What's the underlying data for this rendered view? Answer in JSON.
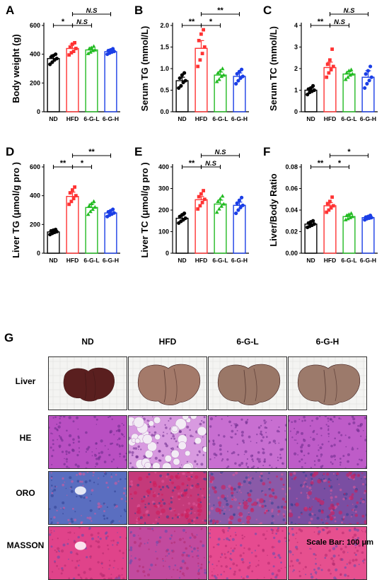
{
  "categories": [
    "ND",
    "HFD",
    "6-G-L",
    "6-G-H"
  ],
  "colors": {
    "ND": "#000000",
    "HFD": "#ff3333",
    "6-G-L": "#22bb22",
    "6-G-H": "#1a3ee6"
  },
  "chart_data": [
    {
      "panel": "A",
      "type": "bar",
      "ylabel": "Body weight (g)",
      "ylim": [
        0,
        600
      ],
      "yticks": [
        0,
        200,
        400,
        600
      ],
      "categories": [
        "ND",
        "HFD",
        "6-G-L",
        "6-G-H"
      ],
      "values": [
        370,
        440,
        430,
        418
      ],
      "errors": [
        25,
        30,
        18,
        15
      ],
      "points": [
        [
          330,
          345,
          360,
          370,
          380,
          390,
          400
        ],
        [
          395,
          410,
          420,
          440,
          450,
          470,
          480
        ],
        [
          405,
          415,
          425,
          430,
          438,
          445,
          455
        ],
        [
          400,
          408,
          415,
          420,
          425,
          430,
          438
        ]
      ],
      "significance": [
        {
          "from": 0,
          "to": 1,
          "label": "*",
          "level": 0
        },
        {
          "from": 1,
          "to": 3,
          "label": "N.S",
          "level": 1
        },
        {
          "from": 1,
          "to": 2,
          "label": "N.S",
          "level": 0
        }
      ]
    },
    {
      "panel": "B",
      "type": "bar",
      "ylabel": "Serum TG (mmol/L)",
      "ylim": [
        0,
        2.0
      ],
      "yticks": [
        0.0,
        0.5,
        1.0,
        1.5,
        2.0
      ],
      "categories": [
        "ND",
        "HFD",
        "6-G-L",
        "6-G-H"
      ],
      "values": [
        0.72,
        1.47,
        0.85,
        0.82
      ],
      "errors": [
        0.08,
        0.18,
        0.07,
        0.08
      ],
      "points": [
        [
          0.55,
          0.6,
          0.68,
          0.72,
          0.78,
          0.85,
          0.9
        ],
        [
          1.05,
          1.2,
          1.35,
          1.5,
          1.65,
          1.8,
          1.9
        ],
        [
          0.7,
          0.75,
          0.82,
          0.85,
          0.9,
          0.95,
          1.0
        ],
        [
          0.65,
          0.72,
          0.78,
          0.82,
          0.88,
          0.93,
          0.98
        ]
      ],
      "significance": [
        {
          "from": 0,
          "to": 1,
          "label": "**",
          "level": 0
        },
        {
          "from": 1,
          "to": 3,
          "label": "**",
          "level": 1
        },
        {
          "from": 1,
          "to": 2,
          "label": "*",
          "level": 0
        }
      ]
    },
    {
      "panel": "C",
      "type": "bar",
      "ylabel": "Serum TC (mmol/L)",
      "ylim": [
        0,
        4
      ],
      "yticks": [
        0,
        1,
        2,
        3,
        4
      ],
      "categories": [
        "ND",
        "HFD",
        "6-G-L",
        "6-G-H"
      ],
      "values": [
        1.0,
        2.05,
        1.75,
        1.6
      ],
      "errors": [
        0.1,
        0.25,
        0.12,
        0.3
      ],
      "points": [
        [
          0.8,
          0.9,
          0.95,
          1.0,
          1.05,
          1.1,
          1.2
        ],
        [
          1.6,
          1.8,
          1.95,
          2.1,
          2.2,
          2.4,
          2.9
        ],
        [
          1.5,
          1.6,
          1.7,
          1.75,
          1.8,
          1.9,
          1.95
        ],
        [
          1.1,
          1.3,
          1.45,
          1.6,
          1.75,
          1.9,
          2.1
        ]
      ],
      "significance": [
        {
          "from": 0,
          "to": 1,
          "label": "**",
          "level": 0
        },
        {
          "from": 1,
          "to": 3,
          "label": "N.S",
          "level": 1
        },
        {
          "from": 1,
          "to": 2,
          "label": "N.S",
          "level": 0
        }
      ]
    },
    {
      "panel": "D",
      "type": "bar",
      "ylabel": "Liver TG (μmol/g pro )",
      "ylim": [
        0,
        600
      ],
      "yticks": [
        0,
        200,
        400,
        600
      ],
      "categories": [
        "ND",
        "HFD",
        "6-G-L",
        "6-G-H"
      ],
      "values": [
        148,
        395,
        318,
        280
      ],
      "errors": [
        10,
        30,
        25,
        15
      ],
      "points": [
        [
          130,
          138,
          145,
          150,
          155,
          160,
          165
        ],
        [
          340,
          360,
          380,
          400,
          420,
          440,
          460
        ],
        [
          270,
          290,
          305,
          320,
          330,
          345,
          360
        ],
        [
          255,
          265,
          272,
          280,
          288,
          295,
          305
        ]
      ],
      "significance": [
        {
          "from": 0,
          "to": 1,
          "label": "**",
          "level": 0
        },
        {
          "from": 1,
          "to": 3,
          "label": "**",
          "level": 1
        },
        {
          "from": 1,
          "to": 2,
          "label": "*",
          "level": 0
        }
      ]
    },
    {
      "panel": "E",
      "type": "bar",
      "ylabel": "Liver TC (μmol/g pro )",
      "ylim": [
        0,
        400
      ],
      "yticks": [
        0,
        100,
        200,
        300,
        400
      ],
      "categories": [
        "ND",
        "HFD",
        "6-G-L",
        "6-G-H"
      ],
      "values": [
        162,
        248,
        228,
        222
      ],
      "errors": [
        12,
        15,
        18,
        15
      ],
      "points": [
        [
          140,
          148,
          155,
          162,
          170,
          178,
          185
        ],
        [
          205,
          220,
          235,
          250,
          262,
          275,
          290
        ],
        [
          190,
          205,
          218,
          228,
          240,
          252,
          265
        ],
        [
          185,
          200,
          212,
          222,
          232,
          245,
          258
        ]
      ],
      "significance": [
        {
          "from": 0,
          "to": 1,
          "label": "**",
          "level": 0
        },
        {
          "from": 1,
          "to": 3,
          "label": "N.S",
          "level": 1
        },
        {
          "from": 1,
          "to": 2,
          "label": "N.S",
          "level": 0
        }
      ]
    },
    {
      "panel": "F",
      "type": "bar",
      "ylabel": "Liver/Body Ratio",
      "ylim": [
        0,
        0.08
      ],
      "yticks": [
        0.0,
        0.02,
        0.04,
        0.06,
        0.08
      ],
      "categories": [
        "ND",
        "HFD",
        "6-G-L",
        "6-G-H"
      ],
      "values": [
        0.027,
        0.044,
        0.034,
        0.033
      ],
      "errors": [
        0.002,
        0.003,
        0.002,
        0.001
      ],
      "points": [
        [
          0.024,
          0.025,
          0.026,
          0.027,
          0.028,
          0.029,
          0.03
        ],
        [
          0.038,
          0.04,
          0.042,
          0.044,
          0.046,
          0.048,
          0.052
        ],
        [
          0.031,
          0.032,
          0.033,
          0.034,
          0.035,
          0.036,
          0.037
        ],
        [
          0.031,
          0.032,
          0.0325,
          0.033,
          0.0335,
          0.034,
          0.035
        ]
      ],
      "significance": [
        {
          "from": 0,
          "to": 1,
          "label": "**",
          "level": 0
        },
        {
          "from": 1,
          "to": 3,
          "label": "*",
          "level": 1
        },
        {
          "from": 1,
          "to": 2,
          "label": "*",
          "level": 0
        }
      ]
    }
  ],
  "histology": {
    "panel": "G",
    "columns": [
      "ND",
      "HFD",
      "6-G-L",
      "6-G-H"
    ],
    "rows": [
      "Liver",
      "HE",
      "ORO",
      "MASSON"
    ],
    "scale_bar": "Scale Bar: 100 μm"
  }
}
